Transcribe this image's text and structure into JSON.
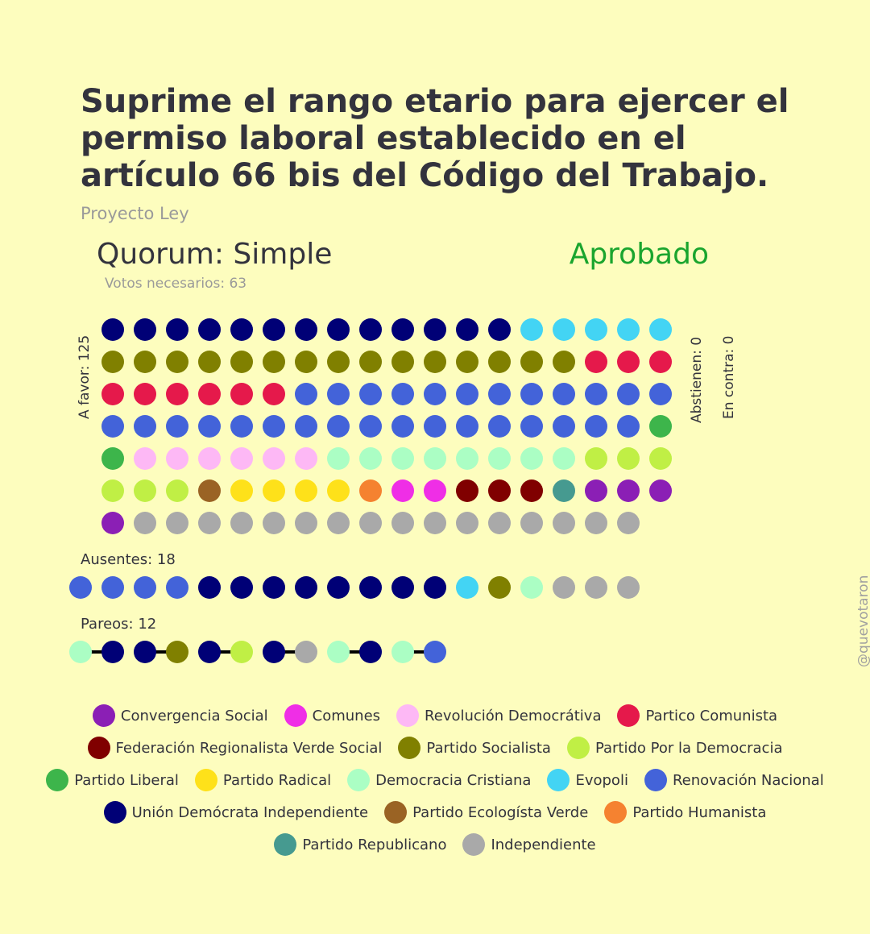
{
  "title": "Suprime el rango etario para ejercer el permiso laboral establecido en el artículo 66 bis del Código del Trabajo.",
  "subtitle": "Proyecto Ley",
  "quorum": "Quorum: Simple",
  "status": "Aprobado",
  "status_color": "#1aa52e",
  "votes_needed": "Votos necesarios: 63",
  "handle": "@quevotaron",
  "chart_data": {
    "type": "dot-matrix",
    "title": "Suprime el rango etario para ejercer el permiso laboral establecido en el artículo 66 bis del Código del Trabajo.",
    "groups": [
      {
        "label": "A favor: 125",
        "count": 125,
        "composition": [
          {
            "party": "Unión Demócrata Independiente",
            "count": 13
          },
          {
            "party": "Evopoli",
            "count": 5
          },
          {
            "party": "Partido Socialista",
            "count": 15
          },
          {
            "party": "Partico Comunista",
            "count": 9
          },
          {
            "party": "Renovación Nacional",
            "count": 29
          },
          {
            "party": "Partido Liberal",
            "count": 2
          },
          {
            "party": "Revolución Democrátiva",
            "count": 6
          },
          {
            "party": "Democracia Cristiana",
            "count": 8
          },
          {
            "party": "Partido Por la Democracia",
            "count": 6
          },
          {
            "party": "Partido Ecologísta Verde",
            "count": 1
          },
          {
            "party": "Partido Radical",
            "count": 4
          },
          {
            "party": "Partido Humanista",
            "count": 1
          },
          {
            "party": "Comunes",
            "count": 2
          },
          {
            "party": "Federación Regionalista Verde Social",
            "count": 3
          },
          {
            "party": "Partido Republicano",
            "count": 1
          },
          {
            "party": "Convergencia Social",
            "count": 4
          },
          {
            "party": "Independiente",
            "count": 16
          }
        ]
      },
      {
        "label": "Abstienen: 0",
        "count": 0,
        "composition": []
      },
      {
        "label": "En contra: 0",
        "count": 0,
        "composition": []
      },
      {
        "label": "Ausentes: 18",
        "count": 18,
        "composition": [
          {
            "party": "Renovación Nacional",
            "count": 4
          },
          {
            "party": "Unión Demócrata Independiente",
            "count": 8
          },
          {
            "party": "Evopoli",
            "count": 1
          },
          {
            "party": "Partido Socialista",
            "count": 1
          },
          {
            "party": "Democracia Cristiana",
            "count": 1
          },
          {
            "party": "Independiente",
            "count": 3
          }
        ]
      },
      {
        "label": "Pareos: 12",
        "count": 12,
        "pairs": [
          [
            "Democracia Cristiana",
            "Unión Demócrata Independiente"
          ],
          [
            "Unión Demócrata Independiente",
            "Partido Socialista"
          ],
          [
            "Unión Demócrata Independiente",
            "Partido Por la Democracia"
          ],
          [
            "Unión Demócrata Independiente",
            "Independiente"
          ],
          [
            "Democracia Cristiana",
            "Unión Demócrata Independiente"
          ],
          [
            "Democracia Cristiana",
            "Renovación Nacional"
          ]
        ]
      }
    ],
    "parties": [
      {
        "name": "Convergencia Social",
        "color": "#8b1fb5"
      },
      {
        "name": "Comunes",
        "color": "#ef2ee6"
      },
      {
        "name": "Revolución Democrátiva",
        "color": "#fdb8f5"
      },
      {
        "name": "Partico Comunista",
        "color": "#e5194b"
      },
      {
        "name": "Federación Regionalista Verde Social",
        "color": "#800000"
      },
      {
        "name": "Partido Socialista",
        "color": "#808000"
      },
      {
        "name": "Partido Por la Democracia",
        "color": "#c0ef45"
      },
      {
        "name": "Partido Liberal",
        "color": "#3db54b"
      },
      {
        "name": "Partido Radical",
        "color": "#fee11a"
      },
      {
        "name": "Democracia Cristiana",
        "color": "#abfec4"
      },
      {
        "name": "Evopoli",
        "color": "#43d4f4"
      },
      {
        "name": "Renovación Nacional",
        "color": "#4363d9"
      },
      {
        "name": "Unión Demócrata Independiente",
        "color": "#000076"
      },
      {
        "name": "Partido Ecologísta Verde",
        "color": "#9a6324"
      },
      {
        "name": "Partido Humanista",
        "color": "#f58230"
      },
      {
        "name": "Partido Republicano",
        "color": "#469a90"
      },
      {
        "name": "Independiente",
        "color": "#a9a9a9"
      }
    ]
  },
  "legend_rows": [
    [
      "Convergencia Social",
      "Comunes",
      "Revolución Democrátiva",
      "Partico Comunista"
    ],
    [
      "Federación Regionalista Verde Social",
      "Partido Socialista",
      "Partido Por la Democracia"
    ],
    [
      "Partido Liberal",
      "Partido Radical",
      "Democracia Cristiana",
      "Evopoli",
      "Renovación Nacional"
    ],
    [
      "Unión Demócrata Independiente",
      "Partido Ecologísta Verde",
      "Partido Humanista"
    ],
    [
      "Partido Republicano",
      "Independiente"
    ]
  ]
}
